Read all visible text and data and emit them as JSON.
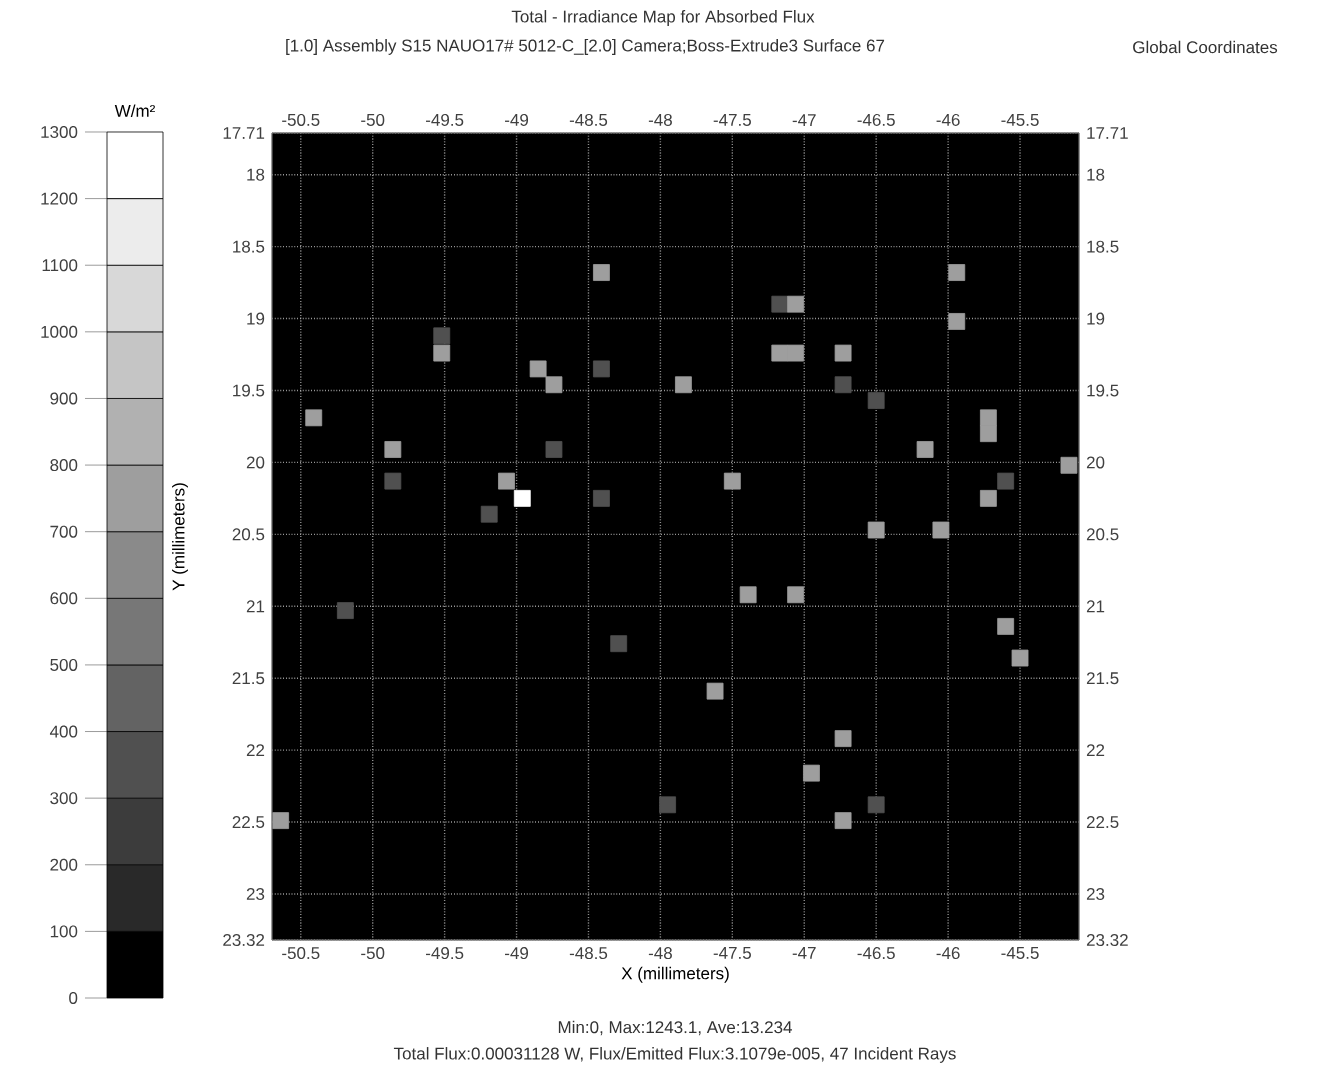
{
  "chart_data": {
    "type": "scatter",
    "title": "Total - Irradiance Map for Absorbed Flux",
    "subtitle": "[1.0] Assembly S15 NAUO17# 5012-C_[2.0] Camera;Boss-Extrude3 Surface 67",
    "xlabel": "X (millimeters)",
    "ylabel": "Y (millimeters)",
    "clabel": "W/m²",
    "annotations": [
      "Global Coordinates",
      "Min:0, Max:1243.1, Ave:13.234",
      "Total Flux:0.00031128 W, Flux/Emitted Flux:3.1079e-005, 47 Incident Rays"
    ],
    "x": [
      -50.41,
      -49.52,
      -49.52,
      -48.85,
      -48.74,
      -48.41,
      -48.41,
      -49.86,
      -49.86,
      -48.74,
      -49.07,
      -48.96,
      -49.19,
      -48.41,
      -50.19,
      -48.29,
      -50.64,
      -47.17,
      -47.06,
      -47.17,
      -47.06,
      -46.73,
      -46.73,
      -47.84,
      -46.5,
      -45.94,
      -45.94,
      -45.72,
      -45.72,
      -46.16,
      -45.16,
      -45.6,
      -45.72,
      -47.5,
      -46.5,
      -46.05,
      -47.39,
      -47.06,
      -45.6,
      -45.5,
      -47.62,
      -46.73,
      -46.95,
      -47.95,
      -46.5,
      -46.73
    ],
    "values": [
      19.69,
      19.12,
      19.24,
      19.35,
      19.46,
      18.68,
      19.35,
      19.91,
      20.13,
      19.91,
      20.13,
      20.25,
      20.36,
      20.25,
      21.03,
      21.26,
      22.49,
      18.9,
      18.9,
      19.24,
      19.24,
      19.24,
      19.46,
      19.46,
      19.57,
      18.68,
      19.02,
      19.69,
      19.8,
      19.91,
      20.02,
      20.13,
      20.25,
      20.13,
      20.47,
      20.47,
      20.92,
      20.92,
      21.14,
      21.36,
      21.59,
      21.92,
      22.16,
      22.38,
      22.38,
      22.49
    ],
    "cvalues": [
      750,
      350,
      750,
      750,
      750,
      750,
      350,
      750,
      350,
      350,
      750,
      1243.1,
      350,
      350,
      350,
      350,
      750,
      350,
      750,
      750,
      750,
      750,
      350,
      750,
      350,
      750,
      750,
      750,
      750,
      750,
      750,
      350,
      750,
      750,
      750,
      750,
      750,
      750,
      750,
      750,
      750,
      750,
      750,
      350,
      350,
      750
    ],
    "marker": "square",
    "grid": true,
    "xlim": [
      -50.7,
      -45.09
    ],
    "ylim": [
      23.32,
      17.71
    ],
    "x2lim": [
      -50.7,
      -45.09
    ],
    "y2lim": [
      23.32,
      17.71
    ],
    "xticks": [
      -50.5,
      -50,
      -49.5,
      -49,
      -48.5,
      -48,
      -47.5,
      -47,
      -46.5,
      -46,
      -45.5
    ],
    "x2ticks": [
      -50.5,
      -50,
      -49.5,
      -49,
      -48.5,
      -48,
      -47.5,
      -47,
      -46.5,
      -46,
      -45.5
    ],
    "yticks": [
      17.71,
      18,
      18.5,
      19,
      19.5,
      20,
      20.5,
      21,
      21.5,
      22,
      22.5,
      23,
      23.32
    ],
    "y2ticks": [
      17.71,
      18,
      18.5,
      19,
      19.5,
      20,
      20.5,
      21,
      21.5,
      22,
      22.5,
      23,
      23.32
    ],
    "clim": [
      0,
      1300
    ],
    "cticks": [
      0,
      100,
      200,
      300,
      400,
      500,
      600,
      700,
      800,
      900,
      1000,
      1100,
      1200,
      1300
    ]
  }
}
